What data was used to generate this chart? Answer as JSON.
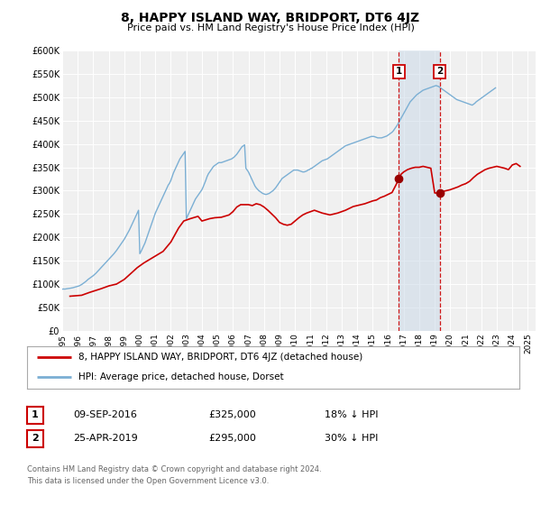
{
  "title": "8, HAPPY ISLAND WAY, BRIDPORT, DT6 4JZ",
  "subtitle": "Price paid vs. HM Land Registry's House Price Index (HPI)",
  "bg_color": "#ffffff",
  "plot_bg_color": "#f0f0f0",
  "grid_color": "#ffffff",
  "hpi_color": "#7bafd4",
  "price_color": "#cc0000",
  "marker_color": "#990000",
  "ylim": [
    0,
    600000
  ],
  "xlim_start": 1995.0,
  "xlim_end": 2025.5,
  "yticks": [
    0,
    50000,
    100000,
    150000,
    200000,
    250000,
    300000,
    350000,
    400000,
    450000,
    500000,
    550000,
    600000
  ],
  "ytick_labels": [
    "£0",
    "£50K",
    "£100K",
    "£150K",
    "£200K",
    "£250K",
    "£300K",
    "£350K",
    "£400K",
    "£450K",
    "£500K",
    "£550K",
    "£600K"
  ],
  "xticks": [
    1995,
    1996,
    1997,
    1998,
    1999,
    2000,
    2001,
    2002,
    2003,
    2004,
    2005,
    2006,
    2007,
    2008,
    2009,
    2010,
    2011,
    2012,
    2013,
    2014,
    2015,
    2016,
    2017,
    2018,
    2019,
    2020,
    2021,
    2022,
    2023,
    2024,
    2025
  ],
  "marker1_x": 2016.69,
  "marker1_y": 325000,
  "marker2_x": 2019.32,
  "marker2_y": 295000,
  "marker1_label": "1",
  "marker2_label": "2",
  "annotation1_date": "09-SEP-2016",
  "annotation1_price": "£325,000",
  "annotation1_hpi": "18% ↓ HPI",
  "annotation2_date": "25-APR-2019",
  "annotation2_price": "£295,000",
  "annotation2_hpi": "30% ↓ HPI",
  "legend_line1": "8, HAPPY ISLAND WAY, BRIDPORT, DT6 4JZ (detached house)",
  "legend_line2": "HPI: Average price, detached house, Dorset",
  "footer_line1": "Contains HM Land Registry data © Crown copyright and database right 2024.",
  "footer_line2": "This data is licensed under the Open Government Licence v3.0.",
  "hpi_x": [
    1995.0,
    1995.083,
    1995.167,
    1995.25,
    1995.333,
    1995.417,
    1995.5,
    1995.583,
    1995.667,
    1995.75,
    1995.833,
    1995.917,
    1996.0,
    1996.083,
    1996.167,
    1996.25,
    1996.333,
    1996.417,
    1996.5,
    1996.583,
    1996.667,
    1996.75,
    1996.833,
    1996.917,
    1997.0,
    1997.083,
    1997.167,
    1997.25,
    1997.333,
    1997.417,
    1997.5,
    1997.583,
    1997.667,
    1997.75,
    1997.833,
    1997.917,
    1998.0,
    1998.083,
    1998.167,
    1998.25,
    1998.333,
    1998.417,
    1998.5,
    1998.583,
    1998.667,
    1998.75,
    1998.833,
    1998.917,
    1999.0,
    1999.083,
    1999.167,
    1999.25,
    1999.333,
    1999.417,
    1999.5,
    1999.583,
    1999.667,
    1999.75,
    1999.833,
    1999.917,
    2000.0,
    2000.083,
    2000.167,
    2000.25,
    2000.333,
    2000.417,
    2000.5,
    2000.583,
    2000.667,
    2000.75,
    2000.833,
    2000.917,
    2001.0,
    2001.083,
    2001.167,
    2001.25,
    2001.333,
    2001.417,
    2001.5,
    2001.583,
    2001.667,
    2001.75,
    2001.833,
    2001.917,
    2002.0,
    2002.083,
    2002.167,
    2002.25,
    2002.333,
    2002.417,
    2002.5,
    2002.583,
    2002.667,
    2002.75,
    2002.833,
    2002.917,
    2003.0,
    2003.083,
    2003.167,
    2003.25,
    2003.333,
    2003.417,
    2003.5,
    2003.583,
    2003.667,
    2003.75,
    2003.833,
    2003.917,
    2004.0,
    2004.083,
    2004.167,
    2004.25,
    2004.333,
    2004.417,
    2004.5,
    2004.583,
    2004.667,
    2004.75,
    2004.833,
    2004.917,
    2005.0,
    2005.083,
    2005.167,
    2005.25,
    2005.333,
    2005.417,
    2005.5,
    2005.583,
    2005.667,
    2005.75,
    2005.833,
    2005.917,
    2006.0,
    2006.083,
    2006.167,
    2006.25,
    2006.333,
    2006.417,
    2006.5,
    2006.583,
    2006.667,
    2006.75,
    2006.833,
    2006.917,
    2007.0,
    2007.083,
    2007.167,
    2007.25,
    2007.333,
    2007.417,
    2007.5,
    2007.583,
    2007.667,
    2007.75,
    2007.833,
    2007.917,
    2008.0,
    2008.083,
    2008.167,
    2008.25,
    2008.333,
    2008.417,
    2008.5,
    2008.583,
    2008.667,
    2008.75,
    2008.833,
    2008.917,
    2009.0,
    2009.083,
    2009.167,
    2009.25,
    2009.333,
    2009.417,
    2009.5,
    2009.583,
    2009.667,
    2009.75,
    2009.833,
    2009.917,
    2010.0,
    2010.083,
    2010.167,
    2010.25,
    2010.333,
    2010.417,
    2010.5,
    2010.583,
    2010.667,
    2010.75,
    2010.833,
    2010.917,
    2011.0,
    2011.083,
    2011.167,
    2011.25,
    2011.333,
    2011.417,
    2011.5,
    2011.583,
    2011.667,
    2011.75,
    2011.833,
    2011.917,
    2012.0,
    2012.083,
    2012.167,
    2012.25,
    2012.333,
    2012.417,
    2012.5,
    2012.583,
    2012.667,
    2012.75,
    2012.833,
    2012.917,
    2013.0,
    2013.083,
    2013.167,
    2013.25,
    2013.333,
    2013.417,
    2013.5,
    2013.583,
    2013.667,
    2013.75,
    2013.833,
    2013.917,
    2014.0,
    2014.083,
    2014.167,
    2014.25,
    2014.333,
    2014.417,
    2014.5,
    2014.583,
    2014.667,
    2014.75,
    2014.833,
    2014.917,
    2015.0,
    2015.083,
    2015.167,
    2015.25,
    2015.333,
    2015.417,
    2015.5,
    2015.583,
    2015.667,
    2015.75,
    2015.833,
    2015.917,
    2016.0,
    2016.083,
    2016.167,
    2016.25,
    2016.333,
    2016.417,
    2016.5,
    2016.583,
    2016.667,
    2016.75,
    2016.833,
    2016.917,
    2017.0,
    2017.083,
    2017.167,
    2017.25,
    2017.333,
    2017.417,
    2017.5,
    2017.583,
    2017.667,
    2017.75,
    2017.833,
    2017.917,
    2018.0,
    2018.083,
    2018.167,
    2018.25,
    2018.333,
    2018.417,
    2018.5,
    2018.583,
    2018.667,
    2018.75,
    2018.833,
    2018.917,
    2019.0,
    2019.083,
    2019.167,
    2019.25,
    2019.333,
    2019.417,
    2019.5,
    2019.583,
    2019.667,
    2019.75,
    2019.833,
    2019.917,
    2020.0,
    2020.083,
    2020.167,
    2020.25,
    2020.333,
    2020.417,
    2020.5,
    2020.583,
    2020.667,
    2020.75,
    2020.833,
    2020.917,
    2021.0,
    2021.083,
    2021.167,
    2021.25,
    2021.333,
    2021.417,
    2021.5,
    2021.583,
    2021.667,
    2021.75,
    2021.833,
    2021.917,
    2022.0,
    2022.083,
    2022.167,
    2022.25,
    2022.333,
    2022.417,
    2022.5,
    2022.583,
    2022.667,
    2022.75,
    2022.833,
    2022.917,
    2023.0,
    2023.083,
    2023.167,
    2023.25,
    2023.333,
    2023.417,
    2023.5,
    2023.583,
    2023.667,
    2023.75,
    2023.833,
    2023.917,
    2024.0,
    2024.083,
    2024.167,
    2024.25,
    2024.333,
    2024.417,
    2024.5
  ],
  "hpi_y": [
    89000,
    89500,
    89200,
    89800,
    90200,
    90500,
    91000,
    91500,
    92000,
    92800,
    93500,
    94200,
    95000,
    96000,
    97500,
    99000,
    101000,
    103000,
    105000,
    107500,
    110000,
    112000,
    114000,
    116000,
    118000,
    120500,
    123000,
    126000,
    129000,
    132000,
    135000,
    138000,
    141000,
    144000,
    147000,
    150000,
    153000,
    156000,
    159000,
    162000,
    165000,
    168500,
    172000,
    176000,
    180000,
    184000,
    188000,
    192000,
    196000,
    201000,
    206000,
    211000,
    216000,
    222000,
    228000,
    234000,
    240000,
    246000,
    252000,
    258000,
    165000,
    170000,
    176000,
    182000,
    188000,
    196000,
    204000,
    212000,
    220000,
    228000,
    236000,
    244000,
    252000,
    258000,
    264000,
    270000,
    276000,
    282000,
    288000,
    294000,
    300000,
    306000,
    312000,
    316000,
    322000,
    330000,
    338000,
    344000,
    350000,
    356000,
    362000,
    368000,
    372000,
    376000,
    380000,
    384000,
    240000,
    246000,
    252000,
    258000,
    264000,
    270000,
    276000,
    282000,
    286000,
    290000,
    294000,
    298000,
    302000,
    308000,
    315000,
    322000,
    330000,
    336000,
    340000,
    344000,
    348000,
    352000,
    354000,
    356000,
    358000,
    360000,
    360000,
    360000,
    361000,
    362000,
    363000,
    364000,
    365000,
    366000,
    367000,
    368000,
    370000,
    372000,
    375000,
    378000,
    382000,
    386000,
    390000,
    394000,
    396000,
    398000,
    348000,
    344000,
    340000,
    334000,
    328000,
    322000,
    316000,
    310000,
    306000,
    303000,
    300000,
    298000,
    296000,
    294000,
    293000,
    292000,
    292000,
    293000,
    294000,
    296000,
    298000,
    300000,
    303000,
    306000,
    310000,
    314000,
    318000,
    322000,
    326000,
    328000,
    330000,
    332000,
    334000,
    336000,
    338000,
    340000,
    342000,
    344000,
    344000,
    344000,
    344000,
    343000,
    342000,
    341000,
    340000,
    340000,
    341000,
    342000,
    344000,
    345000,
    347000,
    348000,
    350000,
    352000,
    354000,
    356000,
    358000,
    360000,
    362000,
    364000,
    365000,
    366000,
    367000,
    368000,
    370000,
    372000,
    374000,
    376000,
    378000,
    380000,
    382000,
    384000,
    386000,
    388000,
    390000,
    392000,
    394000,
    396000,
    397000,
    398000,
    399000,
    400000,
    401000,
    402000,
    403000,
    404000,
    405000,
    406000,
    407000,
    408000,
    409000,
    410000,
    411000,
    412000,
    413000,
    414000,
    415000,
    416000,
    416000,
    416000,
    415000,
    414000,
    413000,
    413000,
    413000,
    413000,
    414000,
    415000,
    416000,
    417000,
    419000,
    421000,
    423000,
    425000,
    428000,
    432000,
    436000,
    440000,
    445000,
    450000,
    455000,
    460000,
    465000,
    470000,
    475000,
    480000,
    485000,
    490000,
    493000,
    496000,
    499000,
    502000,
    505000,
    507000,
    509000,
    511000,
    513000,
    515000,
    516000,
    517000,
    518000,
    519000,
    520000,
    521000,
    522000,
    523000,
    524000,
    525000,
    524000,
    523000,
    521000,
    519000,
    517000,
    515000,
    513000,
    511000,
    509000,
    507000,
    505000,
    503000,
    501000,
    499000,
    497000,
    495000,
    494000,
    493000,
    492000,
    491000,
    490000,
    489000,
    488000,
    487000,
    486000,
    485000,
    484000,
    483000,
    485000,
    487000,
    490000,
    492000,
    494000,
    496000,
    498000,
    500000,
    502000,
    504000,
    506000,
    508000,
    510000,
    512000,
    514000,
    516000,
    518000,
    520000
  ],
  "price_x": [
    1995.5,
    1996.25,
    1996.75,
    1997.5,
    1998.0,
    1998.5,
    1999.0,
    1999.5,
    1999.83,
    2000.25,
    2000.75,
    2001.0,
    2001.5,
    2002.0,
    2002.5,
    2002.83,
    2003.25,
    2003.75,
    2004.0,
    2004.5,
    2004.83,
    2005.25,
    2005.75,
    2006.0,
    2006.25,
    2006.5,
    2006.75,
    2007.0,
    2007.25,
    2007.5,
    2007.75,
    2008.0,
    2008.25,
    2008.5,
    2008.75,
    2009.0,
    2009.25,
    2009.5,
    2009.75,
    2010.0,
    2010.25,
    2010.5,
    2010.75,
    2011.0,
    2011.25,
    2011.5,
    2011.75,
    2012.0,
    2012.25,
    2012.5,
    2012.75,
    2013.0,
    2013.25,
    2013.5,
    2013.75,
    2014.0,
    2014.25,
    2014.5,
    2014.75,
    2015.0,
    2015.25,
    2015.5,
    2015.75,
    2016.0,
    2016.25,
    2016.5,
    2016.69,
    2016.83,
    2017.0,
    2017.25,
    2017.5,
    2017.75,
    2018.0,
    2018.25,
    2018.5,
    2018.75,
    2019.0,
    2019.32,
    2019.5,
    2019.75,
    2020.0,
    2020.25,
    2020.5,
    2020.75,
    2021.0,
    2021.25,
    2021.5,
    2021.75,
    2022.0,
    2022.25,
    2022.5,
    2022.75,
    2023.0,
    2023.25,
    2023.5,
    2023.75,
    2024.0,
    2024.25,
    2024.5
  ],
  "price_y": [
    74000,
    76000,
    82000,
    90000,
    96000,
    100000,
    110000,
    125000,
    135000,
    145000,
    155000,
    160000,
    170000,
    190000,
    220000,
    235000,
    240000,
    245000,
    235000,
    240000,
    242000,
    243000,
    248000,
    255000,
    265000,
    270000,
    270000,
    270000,
    268000,
    272000,
    270000,
    265000,
    258000,
    250000,
    242000,
    232000,
    228000,
    226000,
    228000,
    235000,
    242000,
    248000,
    252000,
    255000,
    258000,
    255000,
    252000,
    250000,
    248000,
    250000,
    252000,
    255000,
    258000,
    262000,
    266000,
    268000,
    270000,
    272000,
    275000,
    278000,
    280000,
    285000,
    288000,
    292000,
    296000,
    312000,
    325000,
    335000,
    340000,
    345000,
    348000,
    350000,
    350000,
    352000,
    350000,
    348000,
    295000,
    295000,
    298000,
    300000,
    302000,
    305000,
    308000,
    312000,
    315000,
    320000,
    328000,
    335000,
    340000,
    345000,
    348000,
    350000,
    352000,
    350000,
    348000,
    345000,
    355000,
    358000,
    352000
  ]
}
